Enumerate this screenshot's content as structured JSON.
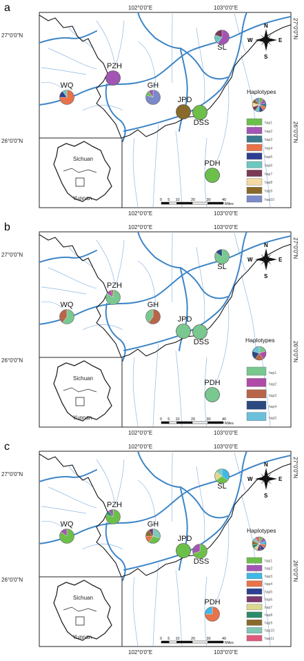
{
  "colors": {
    "hap1": "#6cc04a",
    "hap2": "#a355b4",
    "hap3": "#3fa6d8",
    "hap4": "#e8724a",
    "hap5": "#2e3f92",
    "hap6": "#5e5aa3",
    "hap7": "#d9d890",
    "hap8": "#2c8a6a",
    "hap9": "#8a6a2a",
    "hap10": "#7fc8b8",
    "hap11": "#e05a7a"
  },
  "map_text": {
    "lon_102": "102°0'0\"E",
    "lon_103": "103°0'0\"E",
    "lat_27": "27°0'0\"N",
    "lat_26": "26°0'0\"N",
    "lat_27_rot": "27°0'0\"N",
    "lat_26_rot": "26°0'0\"N",
    "inset_north": "Sichuan",
    "inset_south": "Yunnan",
    "scale_ticks": [
      "0",
      "5",
      "10",
      "20",
      "30",
      "40"
    ],
    "scale_unit": "Miles",
    "compass": {
      "n": "N",
      "s": "S",
      "e": "E",
      "w": "W"
    }
  },
  "sites": {
    "SL": "SL",
    "PZH": "PZH",
    "WQ": "WQ",
    "GH": "GH",
    "JPD": "JPD",
    "DSS": "DSS",
    "PDH": "PDH"
  },
  "panels": [
    {
      "letter": "a",
      "legend_title": "Haplotypes",
      "legend": [
        {
          "label": "hap1",
          "color": "#6cc04a"
        },
        {
          "label": "hap2",
          "color": "#a355b4"
        },
        {
          "label": "hap3",
          "color": "#3a7a8c"
        },
        {
          "label": "hap4",
          "color": "#e8724a"
        },
        {
          "label": "hap5",
          "color": "#2e3f92"
        },
        {
          "label": "hap6",
          "color": "#6cc8c0"
        },
        {
          "label": "hap7",
          "color": "#7a3a55"
        },
        {
          "label": "hap8",
          "color": "#f3d9a2"
        },
        {
          "label": "hap9",
          "color": "#8a6a2a"
        },
        {
          "label": "hap10",
          "color": "#7b8ac8"
        }
      ],
      "pies": {
        "SL": [
          {
            "hap": "hap2",
            "value": 0.6
          },
          {
            "hap": "hap6",
            "value": 0.2
          },
          {
            "hap": "hap7",
            "value": 0.2
          }
        ],
        "PZH": [
          {
            "hap": "hap2",
            "value": 1
          }
        ],
        "WQ": [
          {
            "hap": "hap4",
            "value": 0.75
          },
          {
            "hap": "hap5",
            "value": 0.15
          },
          {
            "hap": "hap6",
            "value": 0.1
          }
        ],
        "GH": [
          {
            "hap": "hap10",
            "value": 0.8
          },
          {
            "hap": "hap1",
            "value": 0.1
          },
          {
            "hap": "hap2",
            "value": 0.1
          }
        ],
        "JPD": [
          {
            "hap": "hap9",
            "value": 1
          }
        ],
        "DSS": [
          {
            "hap": "hap1",
            "value": 1
          }
        ],
        "PDH": [
          {
            "hap": "hap1",
            "value": 1
          }
        ]
      }
    },
    {
      "letter": "b",
      "legend_title": "Haplotypes",
      "legend": [
        {
          "label": "hap1",
          "color": "#78c890"
        },
        {
          "label": "hap2",
          "color": "#b04ca8"
        },
        {
          "label": "hap3",
          "color": "#b8654a"
        },
        {
          "label": "hap4",
          "color": "#2c4a82"
        },
        {
          "label": "hap5",
          "color": "#6cc0dc"
        }
      ],
      "pies": {
        "SL": [
          {
            "hap": "hap1",
            "value": 0.85
          },
          {
            "hap": "hap4",
            "value": 0.15
          }
        ],
        "PZH": [
          {
            "hap": "hap1",
            "value": 0.85
          },
          {
            "hap": "hap2",
            "value": 0.1
          },
          {
            "hap": "hap3",
            "value": 0.05
          }
        ],
        "WQ": [
          {
            "hap": "hap1",
            "value": 0.6
          },
          {
            "hap": "hap3",
            "value": 0.4
          }
        ],
        "GH": [
          {
            "hap": "hap3",
            "value": 0.6
          },
          {
            "hap": "hap1",
            "value": 0.4
          }
        ],
        "JPD": [
          {
            "hap": "hap1",
            "value": 1
          }
        ],
        "DSS": [
          {
            "hap": "hap1",
            "value": 1
          }
        ],
        "PDH": [
          {
            "hap": "hap1",
            "value": 1
          }
        ]
      }
    },
    {
      "letter": "c",
      "legend_title": "Haplotypes",
      "legend": [
        {
          "label": "hap1",
          "color": "#6cc04a"
        },
        {
          "label": "hap2",
          "color": "#a355b4"
        },
        {
          "label": "hap3",
          "color": "#3fb8e6"
        },
        {
          "label": "hap4",
          "color": "#e8724a"
        },
        {
          "label": "hap5",
          "color": "#2e3f92"
        },
        {
          "label": "hap6",
          "color": "#7a3a70"
        },
        {
          "label": "hap7",
          "color": "#dcd890"
        },
        {
          "label": "hap8",
          "color": "#2c8a6a"
        },
        {
          "label": "hap9",
          "color": "#8a6a2a"
        },
        {
          "label": "hap10",
          "color": "#7fc8b8"
        },
        {
          "label": "hap11",
          "color": "#e05a7a"
        }
      ],
      "pies": {
        "SL": [
          {
            "hap": "hap3",
            "value": 0.35
          },
          {
            "hap": "hap1",
            "value": 0.3
          },
          {
            "hap": "hap7",
            "value": 0.2
          },
          {
            "hap": "hap10",
            "value": 0.15
          }
        ],
        "PZH": [
          {
            "hap": "hap1",
            "value": 0.8
          },
          {
            "hap": "hap8",
            "value": 0.1
          },
          {
            "hap": "hap2",
            "value": 0.1
          }
        ],
        "WQ": [
          {
            "hap": "hap1",
            "value": 0.85
          },
          {
            "hap": "hap2",
            "value": 0.15
          }
        ],
        "GH": [
          {
            "hap": "hap10",
            "value": 0.3
          },
          {
            "hap": "hap1",
            "value": 0.3
          },
          {
            "hap": "hap4",
            "value": 0.15
          },
          {
            "hap": "hap9",
            "value": 0.15
          },
          {
            "hap": "hap6",
            "value": 0.1
          }
        ],
        "JPD": [
          {
            "hap": "hap1",
            "value": 1
          }
        ],
        "DSS": [
          {
            "hap": "hap1",
            "value": 0.7
          },
          {
            "hap": "hap2",
            "value": 0.3
          }
        ],
        "PDH": [
          {
            "hap": "hap4",
            "value": 0.75
          },
          {
            "hap": "hap3",
            "value": 0.25
          }
        ]
      }
    }
  ]
}
